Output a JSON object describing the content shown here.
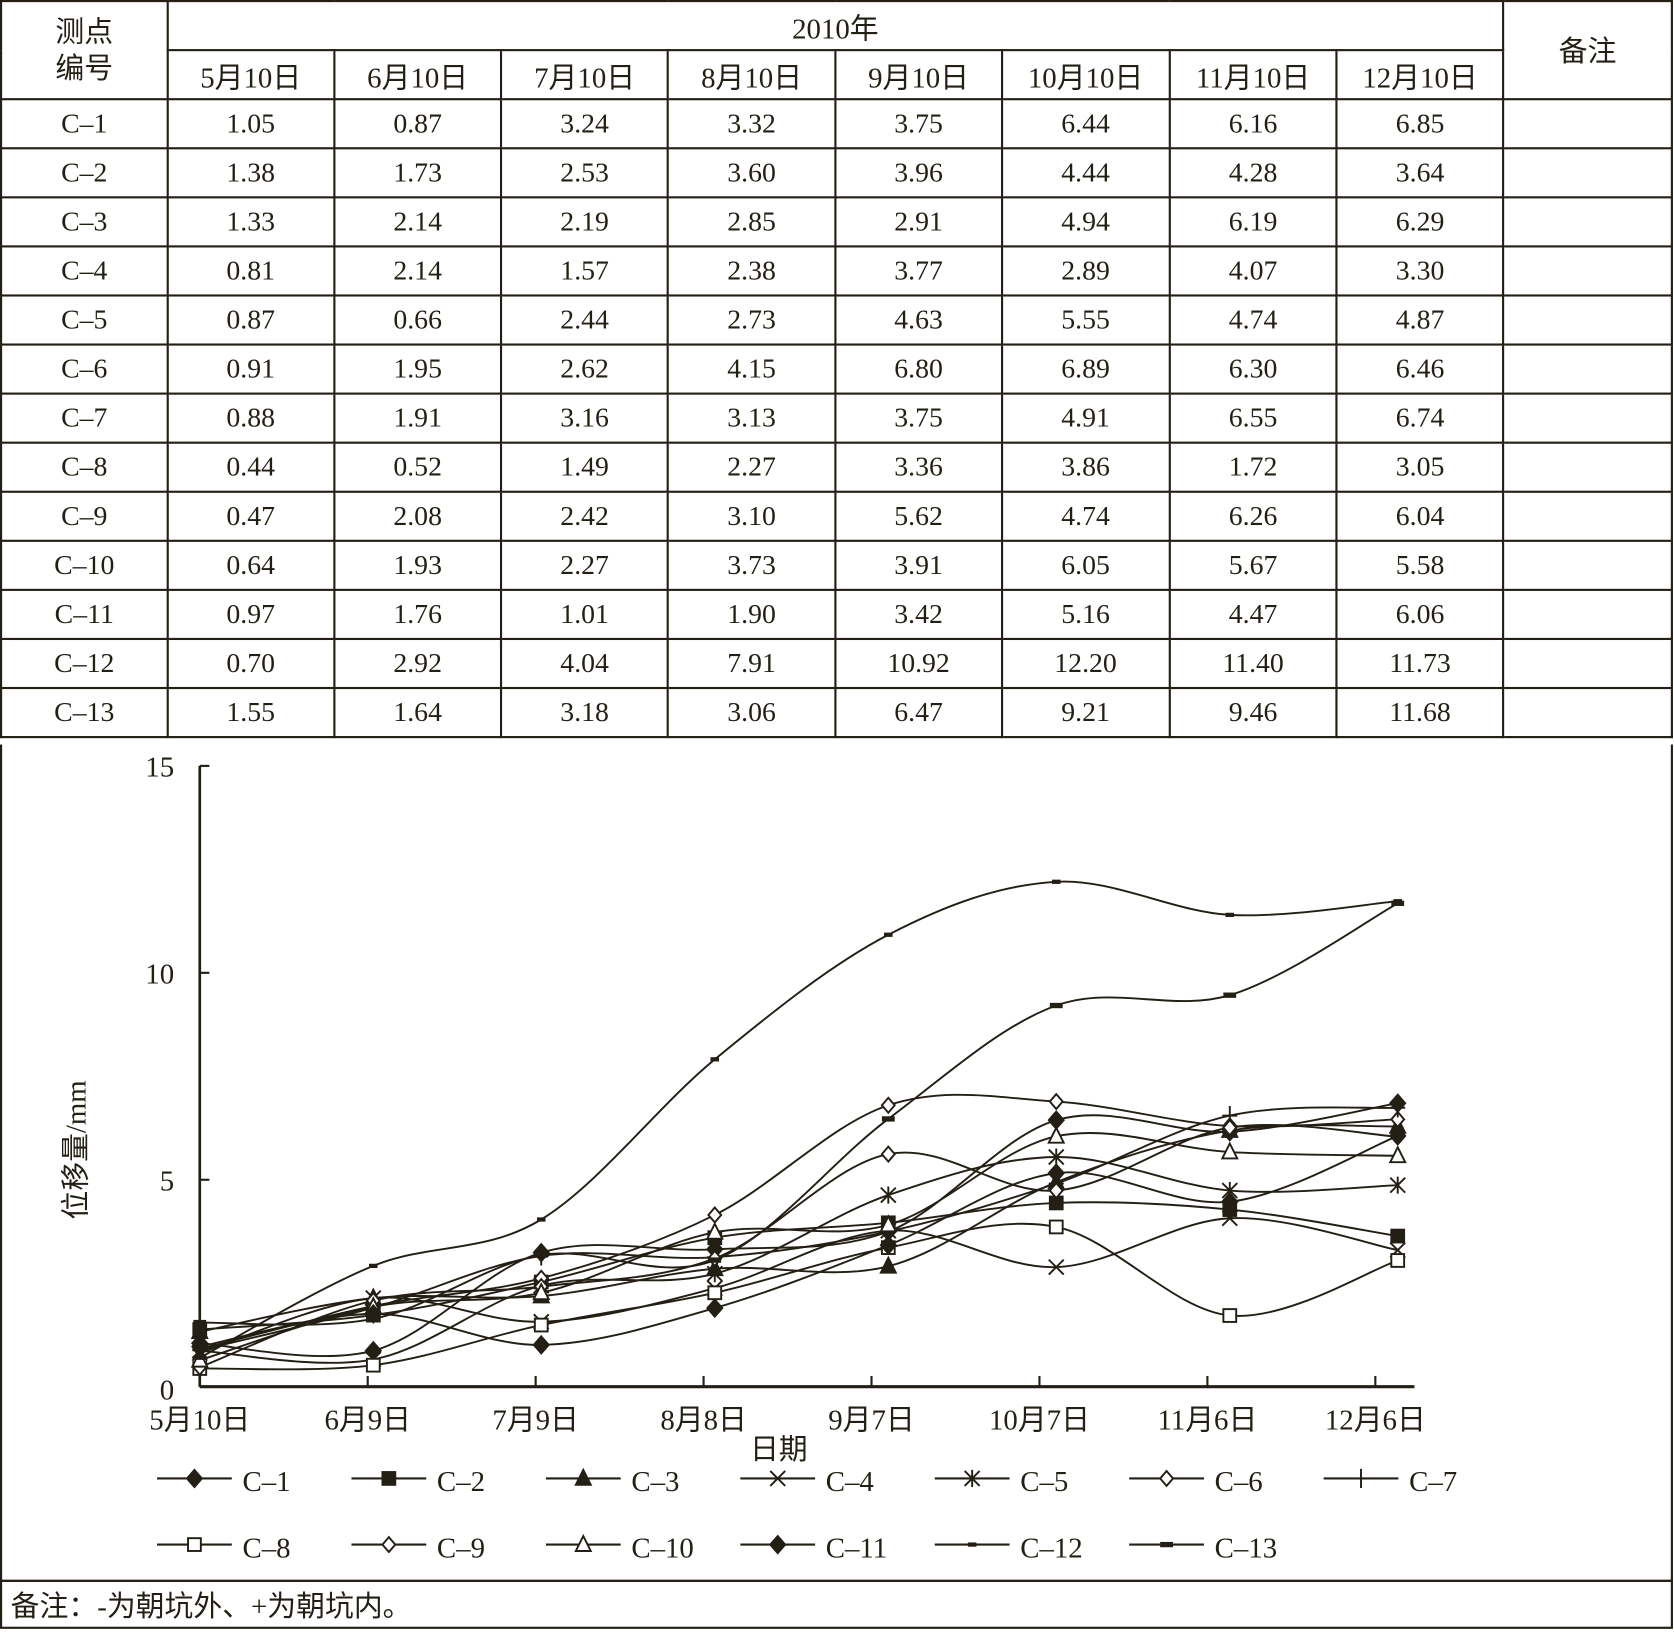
{
  "table": {
    "col_station": "测点编号",
    "col_station_l1": "测点",
    "col_station_l2": "编号",
    "year": "2010年",
    "remark_header": "备注",
    "dates": [
      "5月10日",
      "6月10日",
      "7月10日",
      "8月10日",
      "9月10日",
      "10月10日",
      "11月10日",
      "12月10日"
    ],
    "rows": [
      {
        "id": "C-1",
        "values": [
          "1.05",
          "0.87",
          "3.24",
          "3.32",
          "3.75",
          "6.44",
          "6.16",
          "6.85"
        ]
      },
      {
        "id": "C-2",
        "values": [
          "1.38",
          "1.73",
          "2.53",
          "3.60",
          "3.96",
          "4.44",
          "4.28",
          "3.64"
        ]
      },
      {
        "id": "C-3",
        "values": [
          "1.33",
          "2.14",
          "2.19",
          "2.85",
          "2.91",
          "4.94",
          "6.19",
          "6.29"
        ]
      },
      {
        "id": "C-4",
        "values": [
          "0.81",
          "2.14",
          "1.57",
          "2.38",
          "3.77",
          "2.89",
          "4.07",
          "3.30"
        ]
      },
      {
        "id": "C-5",
        "values": [
          "0.87",
          "0.66",
          "2.44",
          "2.73",
          "4.63",
          "5.55",
          "4.74",
          "4.87"
        ]
      },
      {
        "id": "C-6",
        "values": [
          "0.91",
          "1.95",
          "2.62",
          "4.15",
          "6.80",
          "6.89",
          "6.30",
          "6.46"
        ]
      },
      {
        "id": "C-7",
        "values": [
          "0.88",
          "1.91",
          "3.16",
          "3.13",
          "3.75",
          "4.91",
          "6.55",
          "6.74"
        ]
      },
      {
        "id": "C-8",
        "values": [
          "0.44",
          "0.52",
          "1.49",
          "2.27",
          "3.36",
          "3.86",
          "1.72",
          "3.05"
        ]
      },
      {
        "id": "C-9",
        "values": [
          "0.47",
          "2.08",
          "2.42",
          "3.10",
          "5.62",
          "4.74",
          "6.26",
          "6.04"
        ]
      },
      {
        "id": "C-10",
        "values": [
          "0.64",
          "1.93",
          "2.27",
          "3.73",
          "3.91",
          "6.05",
          "5.67",
          "5.58"
        ]
      },
      {
        "id": "C-11",
        "values": [
          "0.97",
          "1.76",
          "1.01",
          "1.90",
          "3.42",
          "5.16",
          "4.47",
          "6.06"
        ]
      },
      {
        "id": "C-12",
        "values": [
          "0.70",
          "2.92",
          "4.04",
          "7.91",
          "10.92",
          "12.20",
          "11.40",
          "11.73"
        ]
      },
      {
        "id": "C-13",
        "values": [
          "1.55",
          "1.64",
          "3.18",
          "3.06",
          "6.47",
          "9.21",
          "9.46",
          "11.68"
        ]
      }
    ]
  },
  "chart_data": {
    "type": "line",
    "xlabel": "日期",
    "ylabel": "位移量/mm",
    "ylim": [
      0,
      15
    ],
    "yticks": [
      "0",
      "5",
      "10",
      "15"
    ],
    "ytick_values": [
      0,
      5,
      10,
      15
    ],
    "xticks": [
      "5月10日",
      "6月9日",
      "7月9日",
      "8月8日",
      "9月7日",
      "10月7日",
      "11月6日",
      "12月6日"
    ],
    "xtick_days": [
      0,
      30,
      60,
      90,
      120,
      150,
      180,
      210
    ],
    "x_days": [
      0,
      31,
      61,
      92,
      123,
      153,
      184,
      214
    ],
    "series": [
      {
        "name": "C-1",
        "marker": "diamond-filled",
        "values": [
          1.05,
          0.87,
          3.24,
          3.32,
          3.75,
          6.44,
          6.16,
          6.85
        ]
      },
      {
        "name": "C-2",
        "marker": "square-filled",
        "values": [
          1.38,
          1.73,
          2.53,
          3.6,
          3.96,
          4.44,
          4.28,
          3.64
        ]
      },
      {
        "name": "C-3",
        "marker": "triangle-filled",
        "values": [
          1.33,
          2.14,
          2.19,
          2.85,
          2.91,
          4.94,
          6.19,
          6.29
        ]
      },
      {
        "name": "C-4",
        "marker": "x",
        "values": [
          0.81,
          2.14,
          1.57,
          2.38,
          3.77,
          2.89,
          4.07,
          3.3
        ]
      },
      {
        "name": "C-5",
        "marker": "asterisk",
        "values": [
          0.87,
          0.66,
          2.44,
          2.73,
          4.63,
          5.55,
          4.74,
          4.87
        ]
      },
      {
        "name": "C-6",
        "marker": "diamond-open",
        "values": [
          0.91,
          1.95,
          2.62,
          4.15,
          6.8,
          6.89,
          6.3,
          6.46
        ]
      },
      {
        "name": "C-7",
        "marker": "plus",
        "values": [
          0.88,
          1.91,
          3.16,
          3.13,
          3.75,
          4.91,
          6.55,
          6.74
        ]
      },
      {
        "name": "C-8",
        "marker": "square-open",
        "values": [
          0.44,
          0.52,
          1.49,
          2.27,
          3.36,
          3.86,
          1.72,
          3.05
        ]
      },
      {
        "name": "C-9",
        "marker": "diamond-open",
        "values": [
          0.47,
          2.08,
          2.42,
          3.1,
          5.62,
          4.74,
          6.26,
          6.04
        ]
      },
      {
        "name": "C-10",
        "marker": "triangle-open",
        "values": [
          0.64,
          1.93,
          2.27,
          3.73,
          3.91,
          6.05,
          5.67,
          5.58
        ]
      },
      {
        "name": "C-11",
        "marker": "diamond-filled",
        "values": [
          0.97,
          1.76,
          1.01,
          1.9,
          3.42,
          5.16,
          4.47,
          6.06
        ]
      },
      {
        "name": "C-12",
        "marker": "dash",
        "values": [
          0.7,
          2.92,
          4.04,
          7.91,
          10.92,
          12.2,
          11.4,
          11.73
        ]
      },
      {
        "name": "C-13",
        "marker": "dash-thick",
        "values": [
          1.55,
          1.64,
          3.18,
          3.06,
          6.47,
          9.21,
          9.46,
          11.68
        ]
      }
    ],
    "legend_placement": "bottom",
    "grid": false,
    "line_color": "#231f14"
  },
  "note": "备注：-为朝坑外、+为朝坑内。"
}
